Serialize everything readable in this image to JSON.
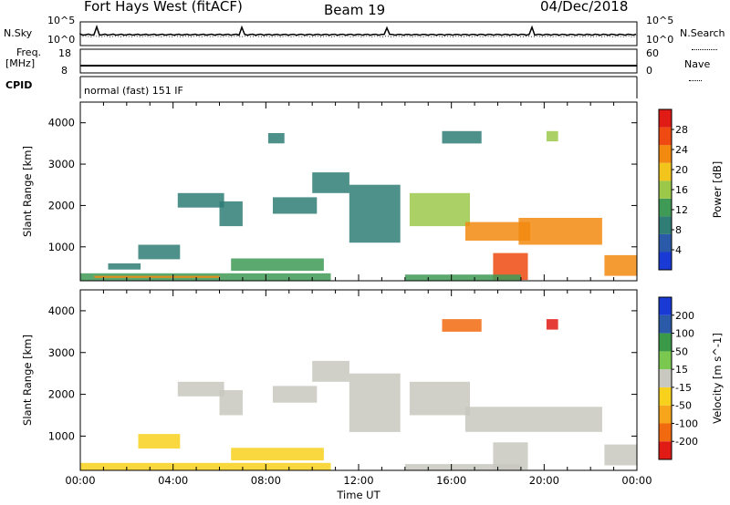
{
  "header": {
    "station": "Fort Hays West (fitACF)",
    "beam": "Beam 19",
    "date": "04/Dec/2018"
  },
  "strips": {
    "nsky_label": "N.Sky",
    "nsearch_label": "N.Search",
    "n_ticks": [
      "10^5",
      "10^0"
    ],
    "freq_label_1": "Freq.",
    "freq_label_2": "[MHz]",
    "freq_ticks": [
      "18",
      "8"
    ],
    "nave_label": "Nave",
    "nave_ticks": [
      "60",
      "0"
    ],
    "cpid_label": "CPID",
    "cpid_text": "normal (fast) 151 IF"
  },
  "chart_data": [
    {
      "type": "heatmap",
      "title": "",
      "ylabel": "Slant Range [km]",
      "xlabel": "",
      "xlim": [
        0,
        24
      ],
      "ylim": [
        180,
        4500
      ],
      "yticks": [
        "4000",
        "3000",
        "2000",
        "1000"
      ],
      "colorbar": {
        "label": "Power [dB]",
        "ticks": [
          "28",
          "24",
          "20",
          "16",
          "12",
          "8",
          "4"
        ],
        "range": [
          0,
          30
        ],
        "colors": [
          "#1a3ad6",
          "#2b5aa8",
          "#2f7d75",
          "#3f9a56",
          "#9cc84a",
          "#f2c41c",
          "#f28a10",
          "#ee4a12",
          "#e01a14"
        ]
      },
      "regions": [
        {
          "t0": 0.0,
          "t1": 10.8,
          "r0": 180,
          "r1": 360,
          "value": 10
        },
        {
          "t0": 0.6,
          "t1": 6.0,
          "r0": 250,
          "r1": 300,
          "value": 22
        },
        {
          "t0": 2.5,
          "t1": 4.3,
          "r0": 700,
          "r1": 1050,
          "value": 9
        },
        {
          "t0": 1.2,
          "t1": 2.6,
          "r0": 450,
          "r1": 600,
          "value": 7
        },
        {
          "t0": 6.5,
          "t1": 10.5,
          "r0": 420,
          "r1": 720,
          "value": 11
        },
        {
          "t0": 4.2,
          "t1": 6.2,
          "r0": 1950,
          "r1": 2300,
          "value": 8
        },
        {
          "t0": 6.0,
          "t1": 7.0,
          "r0": 1500,
          "r1": 2100,
          "value": 9
        },
        {
          "t0": 8.3,
          "t1": 10.2,
          "r0": 1800,
          "r1": 2200,
          "value": 8
        },
        {
          "t0": 10.0,
          "t1": 11.6,
          "r0": 2300,
          "r1": 2800,
          "value": 9
        },
        {
          "t0": 11.6,
          "t1": 13.8,
          "r0": 1100,
          "r1": 2500,
          "value": 9
        },
        {
          "t0": 14.2,
          "t1": 16.8,
          "r0": 1500,
          "r1": 2300,
          "value": 14
        },
        {
          "t0": 16.6,
          "t1": 19.4,
          "r0": 1150,
          "r1": 1600,
          "value": 20
        },
        {
          "t0": 18.9,
          "t1": 22.5,
          "r0": 1050,
          "r1": 1700,
          "value": 21
        },
        {
          "t0": 17.8,
          "t1": 19.3,
          "r0": 200,
          "r1": 850,
          "value": 24
        },
        {
          "t0": 14.0,
          "t1": 19.0,
          "r0": 180,
          "r1": 330,
          "value": 12
        },
        {
          "t0": 22.6,
          "t1": 24.0,
          "r0": 300,
          "r1": 800,
          "value": 20
        },
        {
          "t0": 15.6,
          "t1": 17.3,
          "r0": 3500,
          "r1": 3800,
          "value": 8
        },
        {
          "t0": 20.1,
          "t1": 20.6,
          "r0": 3550,
          "r1": 3800,
          "value": 14
        },
        {
          "t0": 8.1,
          "t1": 8.8,
          "r0": 3500,
          "r1": 3750,
          "value": 7
        }
      ]
    },
    {
      "type": "heatmap",
      "title": "",
      "ylabel": "Slant Range [km]",
      "xlabel": "Time UT",
      "xlim": [
        0,
        24
      ],
      "ylim": [
        180,
        4500
      ],
      "xticks": [
        "00:00",
        "04:00",
        "08:00",
        "12:00",
        "16:00",
        "20:00",
        "00:00"
      ],
      "yticks": [
        "4000",
        "3000",
        "2000",
        "1000"
      ],
      "colorbar": {
        "label": "Velocity [m s^-1]",
        "ticks": [
          "200",
          "100",
          "50",
          "15",
          "-15",
          "-50",
          "-100",
          "-200"
        ],
        "range": [
          -250,
          250
        ],
        "colors": [
          "#e01a14",
          "#f26a10",
          "#f7a51a",
          "#f7d11c",
          "#c8c8c0",
          "#7ac850",
          "#3a9a48",
          "#2b5aa8",
          "#1a3ad6"
        ]
      },
      "regions": [
        {
          "t0": 0.0,
          "t1": 10.8,
          "r0": 180,
          "r1": 360,
          "value": -40
        },
        {
          "t0": 2.5,
          "t1": 4.3,
          "r0": 700,
          "r1": 1050,
          "value": -60
        },
        {
          "t0": 6.5,
          "t1": 10.5,
          "r0": 420,
          "r1": 720,
          "value": -70
        },
        {
          "t0": 4.2,
          "t1": 6.2,
          "r0": 1950,
          "r1": 2300,
          "value": 0
        },
        {
          "t0": 6.0,
          "t1": 7.0,
          "r0": 1500,
          "r1": 2100,
          "value": 0
        },
        {
          "t0": 8.3,
          "t1": 10.2,
          "r0": 1800,
          "r1": 2200,
          "value": 0
        },
        {
          "t0": 10.0,
          "t1": 11.6,
          "r0": 2300,
          "r1": 2800,
          "value": 0
        },
        {
          "t0": 11.6,
          "t1": 13.8,
          "r0": 1100,
          "r1": 2500,
          "value": 0
        },
        {
          "t0": 14.2,
          "t1": 16.8,
          "r0": 1500,
          "r1": 2300,
          "value": 0
        },
        {
          "t0": 16.6,
          "t1": 22.5,
          "r0": 1100,
          "r1": 1700,
          "value": 0
        },
        {
          "t0": 17.8,
          "t1": 19.3,
          "r0": 200,
          "r1": 850,
          "value": 0
        },
        {
          "t0": 14.0,
          "t1": 19.0,
          "r0": 180,
          "r1": 330,
          "value": 20
        },
        {
          "t0": 22.6,
          "t1": 24.0,
          "r0": 300,
          "r1": 800,
          "value": 0
        },
        {
          "t0": 15.6,
          "t1": 17.3,
          "r0": 3500,
          "r1": 3800,
          "value": -180
        },
        {
          "t0": 20.1,
          "t1": 20.6,
          "r0": 3550,
          "r1": 3800,
          "value": -200
        }
      ]
    }
  ]
}
